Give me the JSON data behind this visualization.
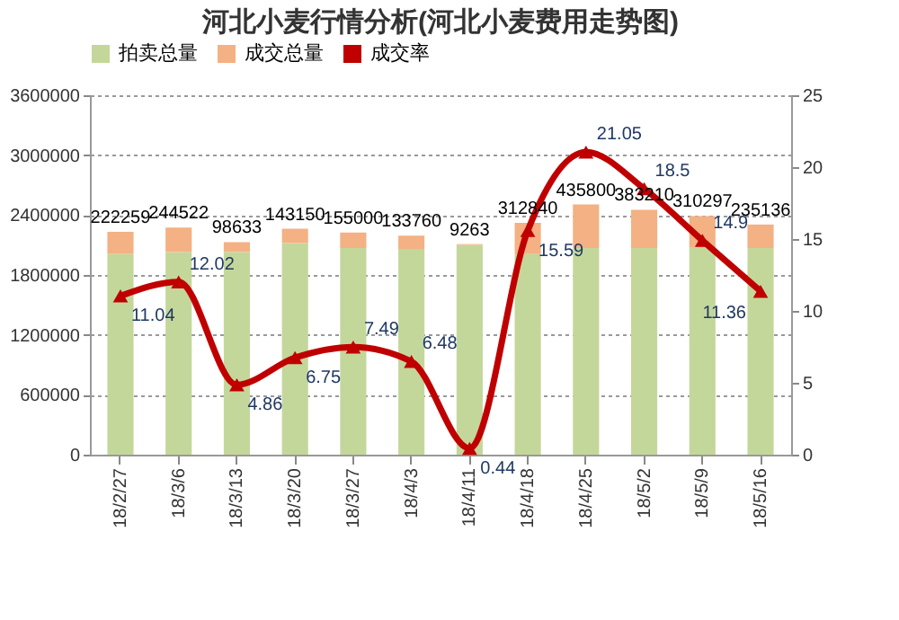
{
  "chart_data": {
    "type": "bar",
    "title": "河北小麦行情分析(河北小麦费用走势图)",
    "stacked": true,
    "categories": [
      "18/2/27",
      "18/3/6",
      "18/3/13",
      "18/3/20",
      "18/3/27",
      "18/4/3",
      "18/4/11",
      "18/4/18",
      "18/4/25",
      "18/5/2",
      "18/5/9",
      "18/5/16"
    ],
    "series": [
      {
        "name": "拍卖总量",
        "color": "#c4d79b",
        "values": [
          2010000,
          2030000,
          2030000,
          2120000,
          2070000,
          2060000,
          2100000,
          2010000,
          2070000,
          2070000,
          2080000,
          2070000
        ]
      },
      {
        "name": "成交总量",
        "color": "#f4b183",
        "values": [
          222259,
          244522,
          98633,
          143150,
          155000,
          133760,
          9263,
          312840,
          435800,
          383210,
          310297,
          235136
        ],
        "value_labels": [
          "222259",
          "244522",
          "98633",
          "143150",
          "155000",
          "133760",
          "9263",
          "312840",
          "435800",
          "383210",
          "310297",
          "235136"
        ]
      },
      {
        "name": "成交率",
        "type": "line",
        "axis": "y2",
        "color": "#c00000",
        "values": [
          11.04,
          12.02,
          4.86,
          6.75,
          7.49,
          6.48,
          0.44,
          15.59,
          21.05,
          18.5,
          14.9,
          11.36
        ],
        "value_labels": [
          "11.04",
          "12.02",
          "4.86",
          "6.75",
          "7.49",
          "6.48",
          "0.44",
          "15.59",
          "21.05",
          "18.5",
          "14.9",
          "11.36"
        ]
      }
    ],
    "ylim": [
      0,
      3600000
    ],
    "yticks": [
      0,
      600000,
      1200000,
      1800000,
      2400000,
      3000000,
      3600000
    ],
    "y2lim": [
      0,
      25
    ],
    "y2ticks": [
      0,
      5,
      10,
      15,
      20,
      25
    ],
    "grid": "y",
    "legend": "top",
    "marker": "triangle"
  }
}
